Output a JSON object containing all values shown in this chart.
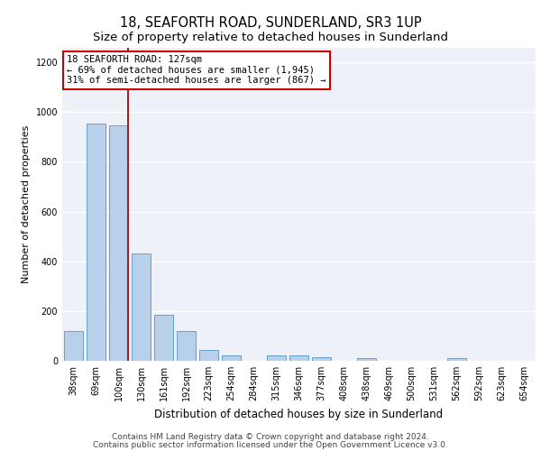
{
  "title1": "18, SEAFORTH ROAD, SUNDERLAND, SR3 1UP",
  "title2": "Size of property relative to detached houses in Sunderland",
  "xlabel": "Distribution of detached houses by size in Sunderland",
  "ylabel": "Number of detached properties",
  "categories": [
    "38sqm",
    "69sqm",
    "100sqm",
    "130sqm",
    "161sqm",
    "192sqm",
    "223sqm",
    "254sqm",
    "284sqm",
    "315sqm",
    "346sqm",
    "377sqm",
    "408sqm",
    "438sqm",
    "469sqm",
    "500sqm",
    "531sqm",
    "562sqm",
    "592sqm",
    "623sqm",
    "654sqm"
  ],
  "values": [
    120,
    955,
    948,
    430,
    185,
    120,
    45,
    20,
    0,
    20,
    20,
    15,
    0,
    12,
    0,
    0,
    0,
    12,
    0,
    0,
    0
  ],
  "bar_color": "#b8d0ea",
  "bar_edge_color": "#6aa0cc",
  "vline_index": 2,
  "vline_color": "#9b1c1c",
  "annotation_line1": "18 SEAFORTH ROAD: 127sqm",
  "annotation_line2": "← 69% of detached houses are smaller (1,945)",
  "annotation_line3": "31% of semi-detached houses are larger (867) →",
  "annotation_box_facecolor": "#ffffff",
  "annotation_box_edgecolor": "#cc0000",
  "ylim": [
    0,
    1260
  ],
  "yticks": [
    0,
    200,
    400,
    600,
    800,
    1000,
    1200
  ],
  "footer1": "Contains HM Land Registry data © Crown copyright and database right 2024.",
  "footer2": "Contains public sector information licensed under the Open Government Licence v3.0.",
  "bg_color": "#eef2f8",
  "grid_color": "#ffffff",
  "title1_fontsize": 10.5,
  "title2_fontsize": 9.5,
  "xlabel_fontsize": 8.5,
  "ylabel_fontsize": 8,
  "tick_fontsize": 7,
  "annot_fontsize": 7.5,
  "footer_fontsize": 6.5
}
